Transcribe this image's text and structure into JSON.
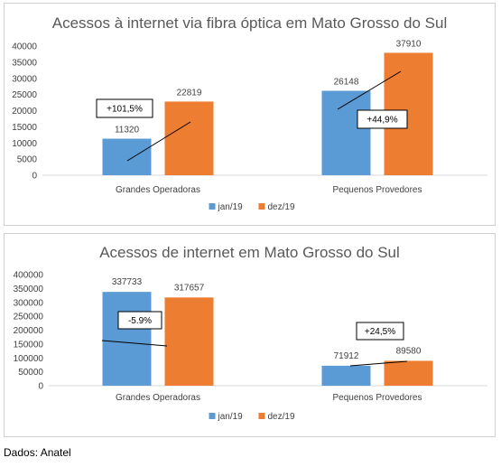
{
  "chart_data": [
    {
      "type": "bar",
      "title": "Acessos à internet via fibra óptica em Mato Grosso do Sul",
      "categories": [
        "Grandes Operadoras",
        "Pequenos Provedores"
      ],
      "series": [
        {
          "name": "jan/19",
          "values": [
            11320,
            26148
          ],
          "color": "#5b9bd5"
        },
        {
          "name": "dez/19",
          "values": [
            22819,
            37910
          ],
          "color": "#ed7d31"
        }
      ],
      "ylim": [
        0,
        40000
      ],
      "yticks": [
        0,
        5000,
        10000,
        15000,
        20000,
        25000,
        30000,
        35000,
        40000
      ],
      "annotations": [
        "+101,5%",
        "+44,9%"
      ],
      "legend": "bottom",
      "grid": false
    },
    {
      "type": "bar",
      "title": "Acessos de internet em Mato Grosso do Sul",
      "categories": [
        "Grandes Operadoras",
        "Pequenos Provedores"
      ],
      "series": [
        {
          "name": "jan/19",
          "values": [
            337733,
            71912
          ],
          "color": "#5b9bd5"
        },
        {
          "name": "dez/19",
          "values": [
            317657,
            89580
          ],
          "color": "#ed7d31"
        }
      ],
      "ylim": [
        0,
        400000
      ],
      "yticks": [
        0,
        50000,
        100000,
        150000,
        200000,
        250000,
        300000,
        350000,
        400000
      ],
      "annotations": [
        "-5.9%",
        "+24,5%"
      ],
      "legend": "bottom",
      "grid": false
    }
  ],
  "source": "Dados: Anatel"
}
